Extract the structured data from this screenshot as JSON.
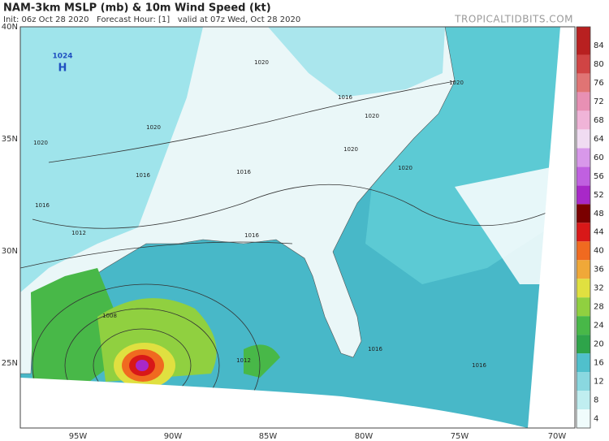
{
  "header": {
    "title": "NAM-3km MSLP (mb) & 10m Wind Speed (kt)",
    "subtitle": "Init: 06z Oct 28 2020   Forecast Hour: [1]   valid at 07z Wed, Oct 28 2020",
    "watermark": "TROPICALTIDBITS.COM"
  },
  "map": {
    "lat_labels": [
      "40N",
      "35N",
      "30N",
      "25N"
    ],
    "lon_labels": [
      "95W",
      "90W",
      "85W",
      "80W",
      "75W",
      "70W"
    ],
    "high_pressure": {
      "value": "1024",
      "label": "H"
    },
    "isobar_labels": [
      "1020",
      "1020",
      "1020",
      "1020",
      "1020",
      "1020",
      "1020",
      "1016",
      "1016",
      "1016",
      "1012",
      "1016",
      "1008",
      "1012",
      "1016",
      "1016",
      "1016"
    ]
  },
  "colorbar": {
    "clim": [
      2,
      88
    ],
    "ticks": [
      4,
      8,
      12,
      16,
      20,
      24,
      28,
      32,
      36,
      40,
      44,
      48,
      52,
      56,
      60,
      64,
      68,
      72,
      76,
      80,
      84
    ],
    "colors": [
      "#f0fcfc",
      "#c0eef0",
      "#8ad8e0",
      "#50c0cc",
      "#2ea44a",
      "#48b848",
      "#90d040",
      "#e0e040",
      "#f0a838",
      "#f06a20",
      "#d81818",
      "#7a0000",
      "#a828c8",
      "#c060e0",
      "#d898ea",
      "#f0dcf2",
      "#f0b4d8",
      "#e890b4",
      "#e07474",
      "#d04444",
      "#b82020"
    ]
  }
}
